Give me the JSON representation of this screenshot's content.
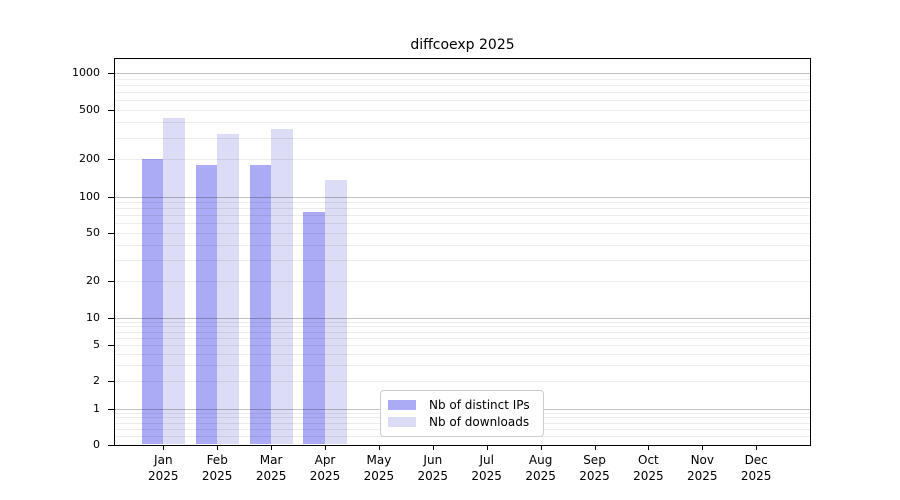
{
  "chart_data": {
    "type": "bar",
    "title": "diffcoexp 2025",
    "categories": [
      "Jan 2025",
      "Feb 2025",
      "Mar 2025",
      "Apr 2025",
      "May 2025",
      "Jun 2025",
      "Jul 2025",
      "Aug 2025",
      "Sep 2025",
      "Oct 2025",
      "Nov 2025",
      "Dec 2025"
    ],
    "series": [
      {
        "name": "Nb of distinct IPs",
        "color": "#aaaaf5",
        "values": [
          200,
          180,
          180,
          75,
          null,
          null,
          null,
          null,
          null,
          null,
          null,
          null
        ]
      },
      {
        "name": "Nb of downloads",
        "color": "#dcdcf7",
        "values": [
          430,
          320,
          355,
          135,
          null,
          null,
          null,
          null,
          null,
          null,
          null,
          null
        ]
      }
    ],
    "yaxis": {
      "scale": "log-like (0 baseline, decades emphasized)",
      "ticks": [
        0,
        1,
        2,
        5,
        10,
        20,
        50,
        100,
        200,
        500,
        1000
      ],
      "range": [
        0,
        1300
      ]
    },
    "xlabel": "",
    "ylabel": "",
    "grid": "horizontal log minor+major gridlines drawn over bars",
    "legend": {
      "position": "inside bottom-center",
      "entries": [
        "Nb of distinct IPs",
        "Nb of downloads"
      ]
    }
  }
}
